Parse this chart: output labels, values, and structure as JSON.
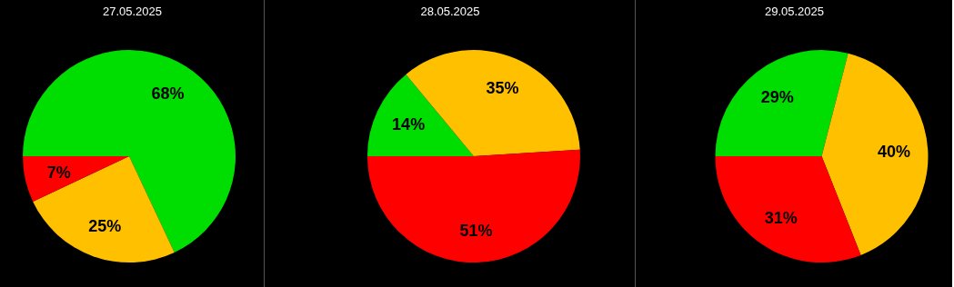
{
  "chart_data": [
    {
      "type": "pie",
      "title": "27.05.2025",
      "categories": [
        null,
        null,
        null
      ],
      "values": [
        68,
        25,
        7
      ],
      "value_labels": [
        "68%",
        "25%",
        "7%"
      ],
      "colors": [
        "#00dd00",
        "#ffc000",
        "#ff0000"
      ]
    },
    {
      "type": "pie",
      "title": "28.05.2025",
      "categories": [
        null,
        null,
        null
      ],
      "values": [
        14,
        35,
        51
      ],
      "value_labels": [
        "14%",
        "35%",
        "51%"
      ],
      "colors": [
        "#00dd00",
        "#ffc000",
        "#ff0000"
      ]
    },
    {
      "type": "pie",
      "title": "29.05.2025",
      "categories": [
        null,
        null,
        null
      ],
      "values": [
        29,
        40,
        31
      ],
      "value_labels": [
        "29%",
        "40%",
        "31%"
      ],
      "colors": [
        "#00dd00",
        "#ffc000",
        "#ff0000"
      ]
    }
  ]
}
